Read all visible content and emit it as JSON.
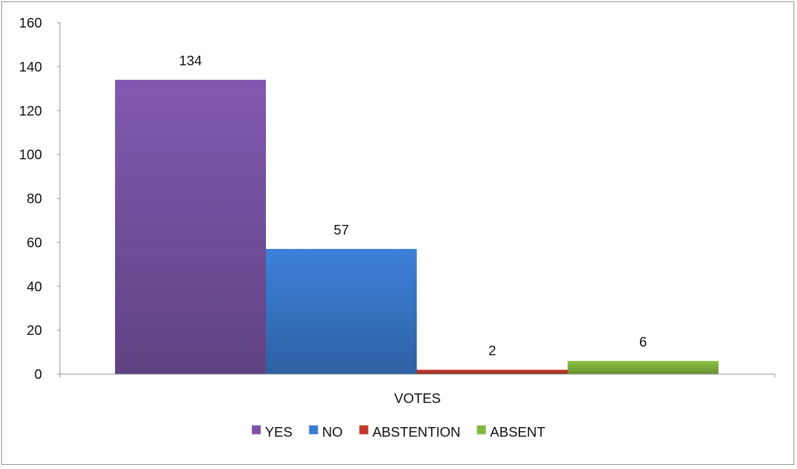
{
  "chart_data": {
    "type": "bar",
    "categories": [
      "VOTES"
    ],
    "series": [
      {
        "name": "YES",
        "values": [
          134
        ],
        "color": "#7b55a8"
      },
      {
        "name": "NO",
        "values": [
          57
        ],
        "color": "#3a7bd0"
      },
      {
        "name": "ABSTENTION",
        "values": [
          2
        ],
        "color": "#c0392b"
      },
      {
        "name": "ABSENT",
        "values": [
          6
        ],
        "color": "#86b840"
      }
    ],
    "title": "",
    "xlabel": "",
    "ylabel": "",
    "ylim": [
      0,
      160
    ],
    "yticks": [
      0,
      20,
      40,
      60,
      80,
      100,
      120,
      140,
      160
    ],
    "grid": false,
    "legend": "bottom",
    "data_labels": true
  }
}
